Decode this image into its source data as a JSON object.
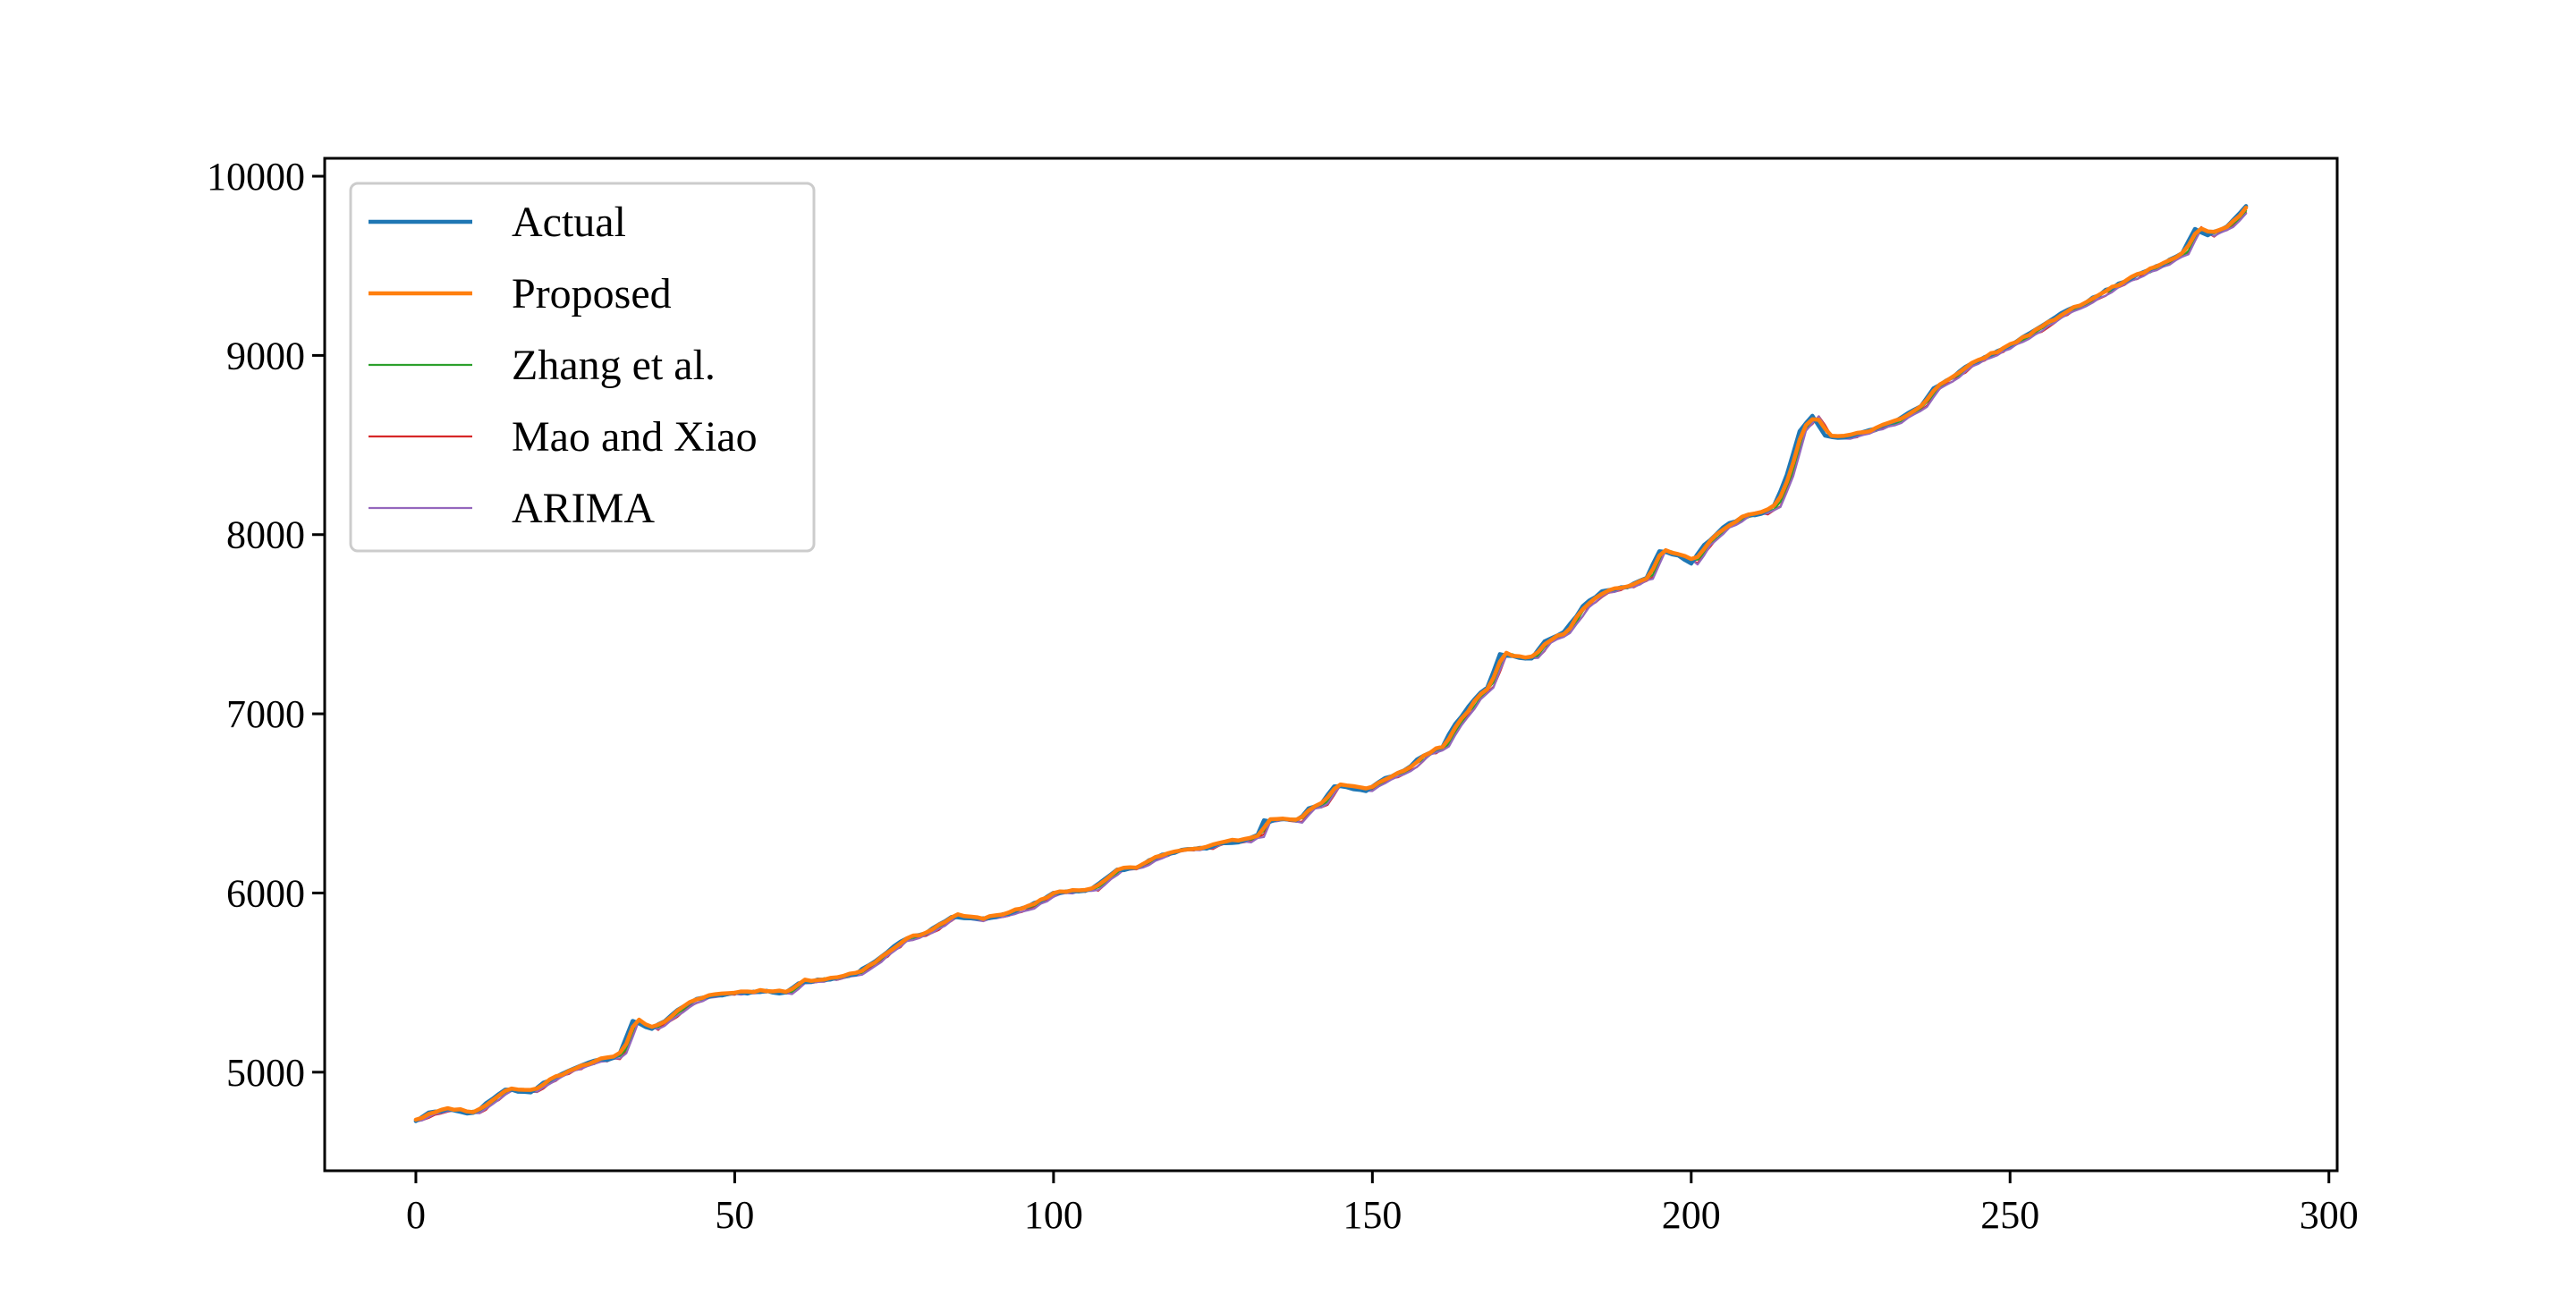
{
  "chart_data": {
    "type": "line",
    "title": "",
    "xlabel": "",
    "ylabel": "",
    "xlim": [
      -14.3,
      301.3
    ],
    "ylim": [
      4450,
      10100
    ],
    "x_ticks": [
      0,
      50,
      100,
      150,
      200,
      250,
      300
    ],
    "x_tick_labels": [
      "0",
      "50",
      "100",
      "150",
      "200",
      "250",
      "300"
    ],
    "y_ticks": [
      5000,
      6000,
      7000,
      8000,
      9000,
      10000
    ],
    "y_tick_labels": [
      "5000",
      "6000",
      "7000",
      "8000",
      "9000",
      "10000"
    ],
    "grid": false,
    "legend_position": "top-left",
    "anchors": [
      [
        0,
        4730
      ],
      [
        2,
        4770
      ],
      [
        5,
        4790
      ],
      [
        9,
        4770
      ],
      [
        12,
        4850
      ],
      [
        14,
        4900
      ],
      [
        18,
        4890
      ],
      [
        20,
        4940
      ],
      [
        24,
        5010
      ],
      [
        28,
        5060
      ],
      [
        31,
        5080
      ],
      [
        32,
        5110
      ],
      [
        34,
        5290
      ],
      [
        37,
        5240
      ],
      [
        39,
        5290
      ],
      [
        42,
        5370
      ],
      [
        45,
        5420
      ],
      [
        50,
        5440
      ],
      [
        55,
        5450
      ],
      [
        58,
        5440
      ],
      [
        60,
        5500
      ],
      [
        65,
        5520
      ],
      [
        69,
        5550
      ],
      [
        72,
        5620
      ],
      [
        76,
        5730
      ],
      [
        80,
        5780
      ],
      [
        82,
        5820
      ],
      [
        84,
        5870
      ],
      [
        88,
        5850
      ],
      [
        92,
        5880
      ],
      [
        96,
        5920
      ],
      [
        100,
        6000
      ],
      [
        104,
        6010
      ],
      [
        106,
        6020
      ],
      [
        110,
        6130
      ],
      [
        113,
        6140
      ],
      [
        116,
        6200
      ],
      [
        120,
        6240
      ],
      [
        124,
        6250
      ],
      [
        126,
        6280
      ],
      [
        130,
        6290
      ],
      [
        132,
        6320
      ],
      [
        133,
        6400
      ],
      [
        136,
        6410
      ],
      [
        138,
        6400
      ],
      [
        140,
        6470
      ],
      [
        142,
        6500
      ],
      [
        144,
        6600
      ],
      [
        146,
        6590
      ],
      [
        149,
        6570
      ],
      [
        152,
        6640
      ],
      [
        155,
        6680
      ],
      [
        158,
        6770
      ],
      [
        161,
        6820
      ],
      [
        163,
        6940
      ],
      [
        166,
        7080
      ],
      [
        168,
        7150
      ],
      [
        170,
        7330
      ],
      [
        173,
        7310
      ],
      [
        175,
        7310
      ],
      [
        177,
        7400
      ],
      [
        180,
        7450
      ],
      [
        183,
        7600
      ],
      [
        186,
        7680
      ],
      [
        190,
        7710
      ],
      [
        193,
        7760
      ],
      [
        195,
        7910
      ],
      [
        198,
        7880
      ],
      [
        200,
        7840
      ],
      [
        202,
        7940
      ],
      [
        205,
        8040
      ],
      [
        208,
        8100
      ],
      [
        211,
        8120
      ],
      [
        213,
        8160
      ],
      [
        215,
        8330
      ],
      [
        217,
        8580
      ],
      [
        219,
        8660
      ],
      [
        221,
        8550
      ],
      [
        224,
        8540
      ],
      [
        228,
        8580
      ],
      [
        232,
        8630
      ],
      [
        236,
        8720
      ],
      [
        238,
        8820
      ],
      [
        241,
        8880
      ],
      [
        243,
        8940
      ],
      [
        246,
        8990
      ],
      [
        250,
        9060
      ],
      [
        254,
        9140
      ],
      [
        258,
        9230
      ],
      [
        262,
        9300
      ],
      [
        266,
        9380
      ],
      [
        270,
        9450
      ],
      [
        274,
        9510
      ],
      [
        277,
        9570
      ],
      [
        279,
        9710
      ],
      [
        281,
        9670
      ],
      [
        284,
        9720
      ],
      [
        287,
        9830
      ]
    ],
    "series": [
      {
        "name": "Actual",
        "color": "#1f77b4",
        "width": 4.5,
        "lag": 0.0,
        "bias": 0,
        "noise": 6,
        "seed": 3
      },
      {
        "name": "Proposed",
        "color": "#ff7f0e",
        "width": 4.5,
        "lag": 0.5,
        "bias": 8,
        "noise": 6,
        "seed": 11
      },
      {
        "name": "Zhang et al.",
        "color": "#2ca02c",
        "width": 2.2,
        "lag": 0.8,
        "bias": 4,
        "noise": 9,
        "seed": 23
      },
      {
        "name": "Mao and Xiao",
        "color": "#d62728",
        "width": 2.2,
        "lag": 1.0,
        "bias": 0,
        "noise": 8,
        "seed": 37
      },
      {
        "name": "ARIMA",
        "color": "#9467bd",
        "width": 2.2,
        "lag": 1.0,
        "bias": -3,
        "noise": 5,
        "seed": 51
      }
    ]
  }
}
